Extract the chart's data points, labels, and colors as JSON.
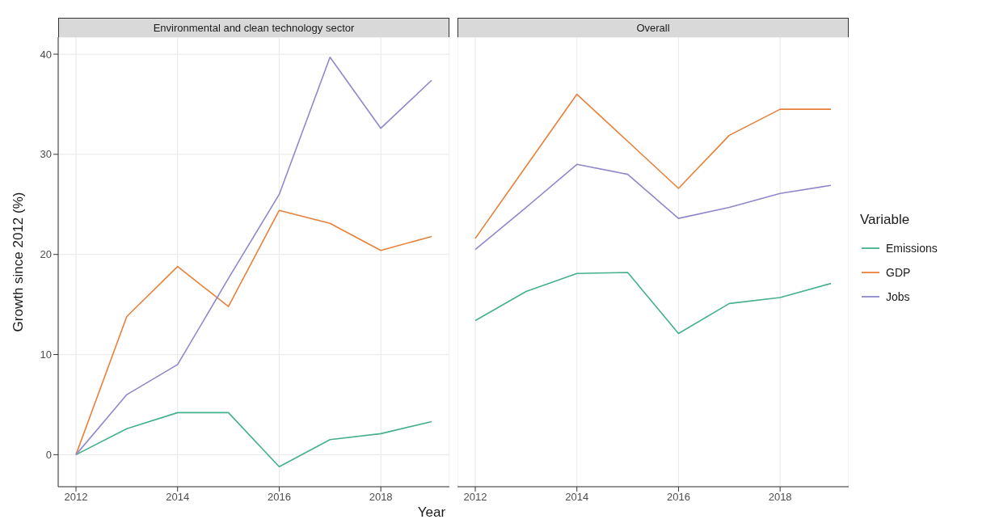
{
  "chart_data": [
    {
      "type": "line",
      "title": "Environmental and clean technology sector",
      "xlabel": "Year",
      "ylabel": "Growth since 2012 (%)",
      "x": [
        2012,
        2013,
        2014,
        2015,
        2016,
        2017,
        2018,
        2019
      ],
      "xlim": [
        2011.65,
        2019.35
      ],
      "xticks": [
        2012,
        2014,
        2016,
        2018
      ],
      "ylim": [
        -3.2,
        41.7
      ],
      "yticks": [
        0,
        10,
        20,
        30,
        40
      ],
      "grid": true,
      "legend": "right",
      "legend_title": "Variable",
      "series": [
        {
          "name": "Emissions",
          "color": "#45b08c",
          "values": [
            0,
            2.6,
            4.2,
            4.2,
            -1.2,
            1.5,
            2.1,
            3.3
          ]
        },
        {
          "name": "GDP",
          "color": "#e8803a",
          "values": [
            0,
            13.8,
            18.8,
            14.8,
            24.4,
            23.1,
            20.4,
            21.8
          ]
        },
        {
          "name": "Jobs",
          "color": "#8f88cc",
          "values": [
            0,
            6.0,
            9.0,
            17.6,
            26.0,
            39.7,
            32.6,
            37.4
          ]
        }
      ]
    },
    {
      "type": "line",
      "title": "Overall",
      "x": [
        2012,
        2013,
        2014,
        2015,
        2016,
        2017,
        2018,
        2019
      ],
      "xlim": [
        2011.65,
        2019.35
      ],
      "xticks": [
        2012,
        2014,
        2016,
        2018
      ],
      "ylim": [
        -3.2,
        41.7
      ],
      "yticks": [
        0,
        10,
        20,
        30,
        40
      ],
      "grid": true,
      "tick_labels": "x",
      "series": [
        {
          "color": "#45b08c",
          "values": [
            13.4,
            16.3,
            18.1,
            18.2,
            12.1,
            15.1,
            15.7,
            17.1
          ]
        },
        {
          "color": "#e8803a",
          "values": [
            21.6,
            28.8,
            36.0,
            31.3,
            26.6,
            31.9,
            34.5,
            34.5
          ]
        },
        {
          "color": "#8f88cc",
          "values": [
            20.5,
            24.7,
            29.0,
            28.0,
            23.6,
            24.7,
            26.1,
            26.9
          ]
        }
      ]
    }
  ]
}
